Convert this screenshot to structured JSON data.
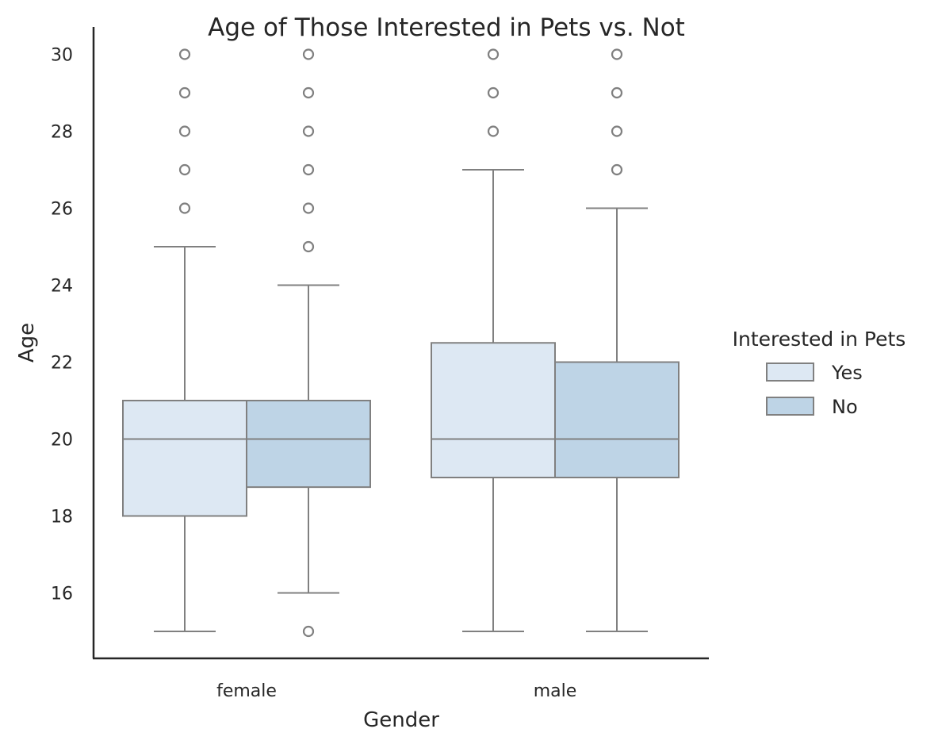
{
  "chart_data": {
    "type": "box",
    "title": "Age of Those Interested in Pets vs. Not",
    "xlabel": "Gender",
    "ylabel": "Age",
    "categories": [
      "female",
      "male"
    ],
    "ylim": [
      14.3,
      30.7
    ],
    "yticks": [
      16,
      18,
      20,
      22,
      24,
      26,
      28,
      30
    ],
    "grid": false,
    "legend": {
      "title": "Interested in Pets",
      "placement": "right"
    },
    "series": [
      {
        "name": "Yes",
        "color": "#dde8f3",
        "boxes": [
          {
            "category": "female",
            "whisker_low": 15,
            "q1": 18,
            "median": 20,
            "q3": 21,
            "whisker_high": 25,
            "outliers": [
              26,
              27,
              28,
              29,
              30
            ]
          },
          {
            "category": "male",
            "whisker_low": 15,
            "q1": 19,
            "median": 20,
            "q3": 22.5,
            "whisker_high": 27,
            "outliers": [
              28,
              29,
              30
            ]
          }
        ]
      },
      {
        "name": "No",
        "color": "#bed4e6",
        "boxes": [
          {
            "category": "female",
            "whisker_low": 16,
            "q1": 18.75,
            "median": 20,
            "q3": 21,
            "whisker_high": 24,
            "outliers": [
              15,
              25,
              26,
              27,
              28,
              29,
              30
            ]
          },
          {
            "category": "male",
            "whisker_low": 15,
            "q1": 19,
            "median": 20,
            "q3": 22,
            "whisker_high": 26,
            "outliers": [
              27,
              28,
              29,
              30
            ]
          }
        ]
      }
    ],
    "line_color": "#808080",
    "axis_color": "#262626"
  }
}
